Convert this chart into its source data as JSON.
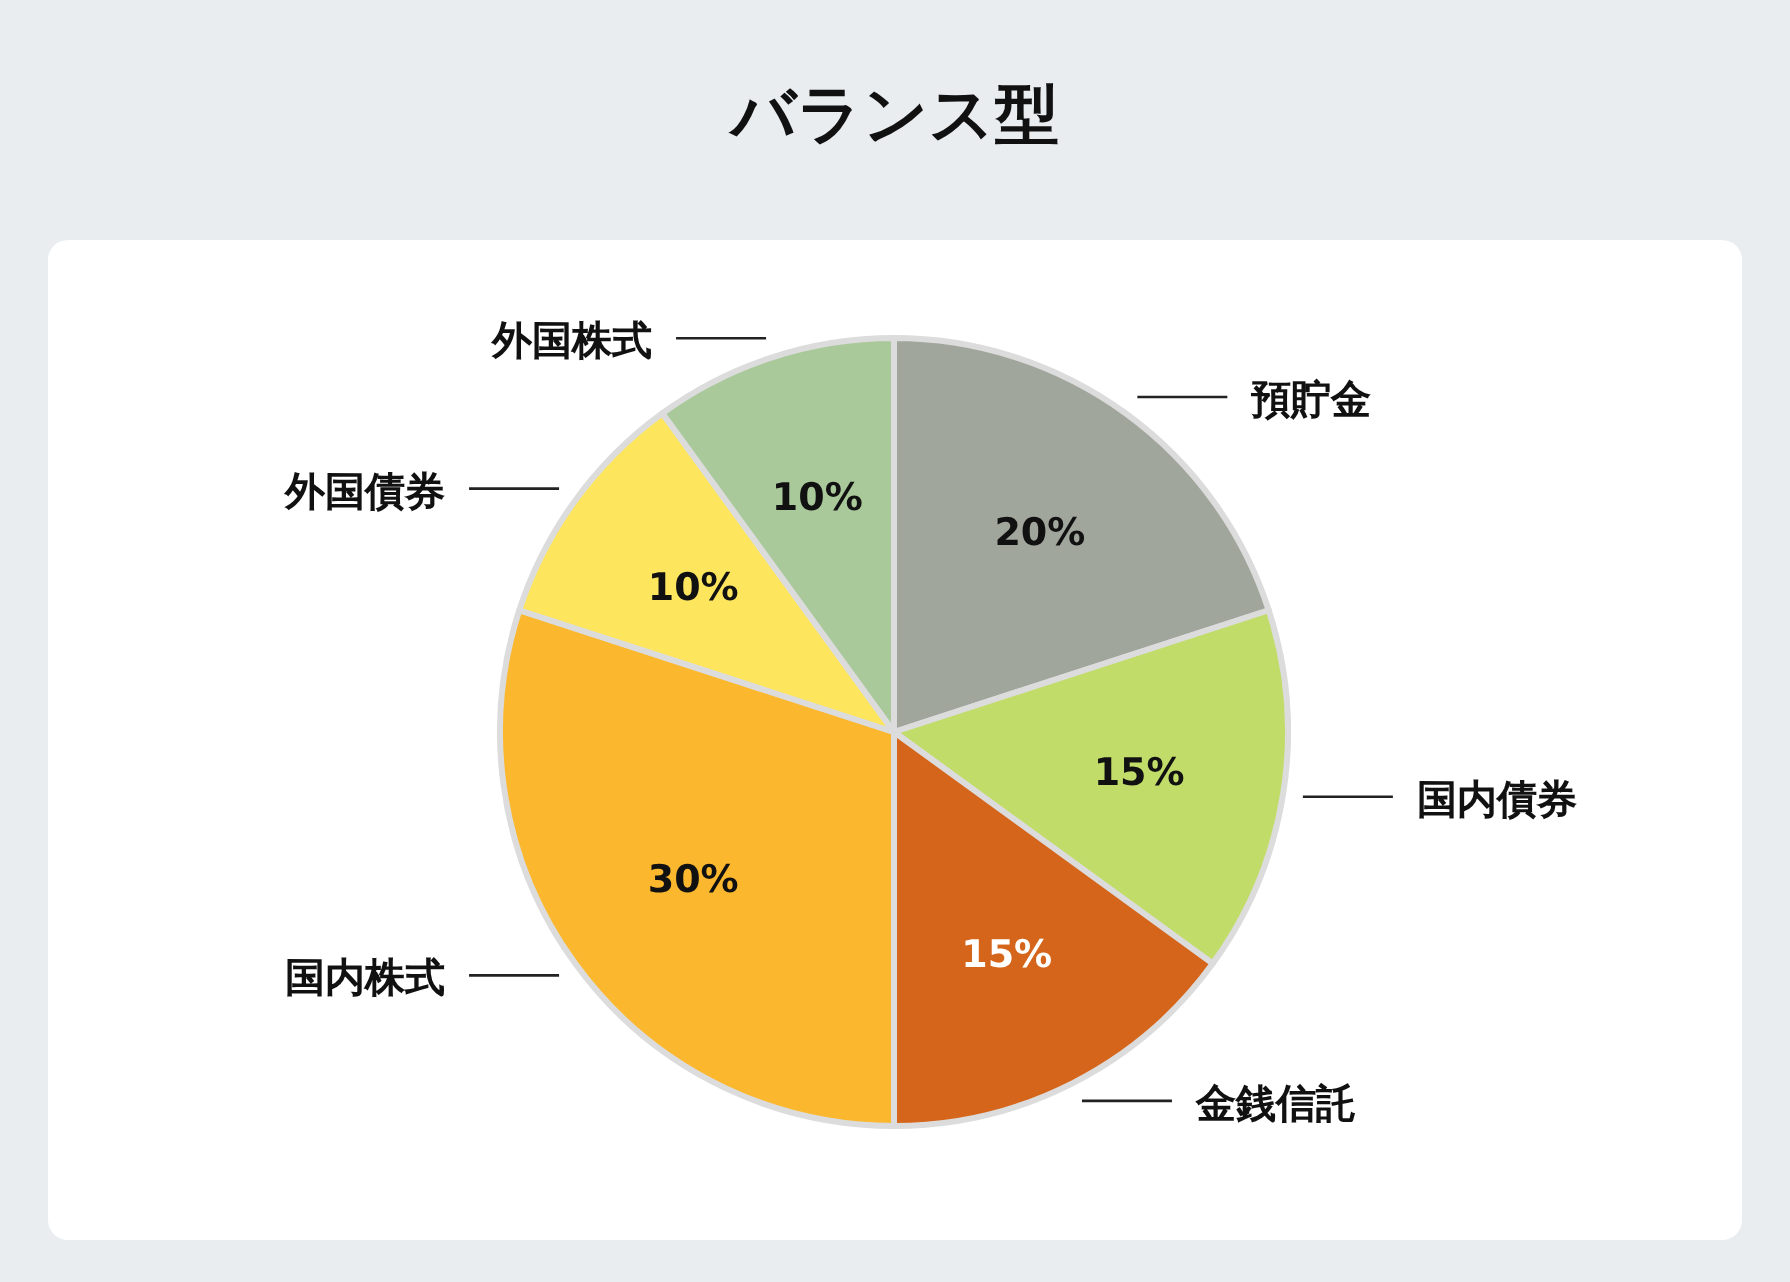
{
  "chart_data": {
    "type": "pie",
    "title": "バランス型",
    "categories": [
      "預貯金",
      "国内債券",
      "金銭信託",
      "国内株式",
      "外国債券",
      "外国株式"
    ],
    "values": [
      20,
      15,
      15,
      30,
      10,
      10
    ],
    "colors": [
      "#a0a69c",
      "#c2dc6a",
      "#d5651a",
      "#fbb72d",
      "#fde65e",
      "#a9c99a"
    ],
    "value_labels": [
      "20%",
      "15%",
      "15%",
      "30%",
      "10%",
      "10%"
    ]
  }
}
